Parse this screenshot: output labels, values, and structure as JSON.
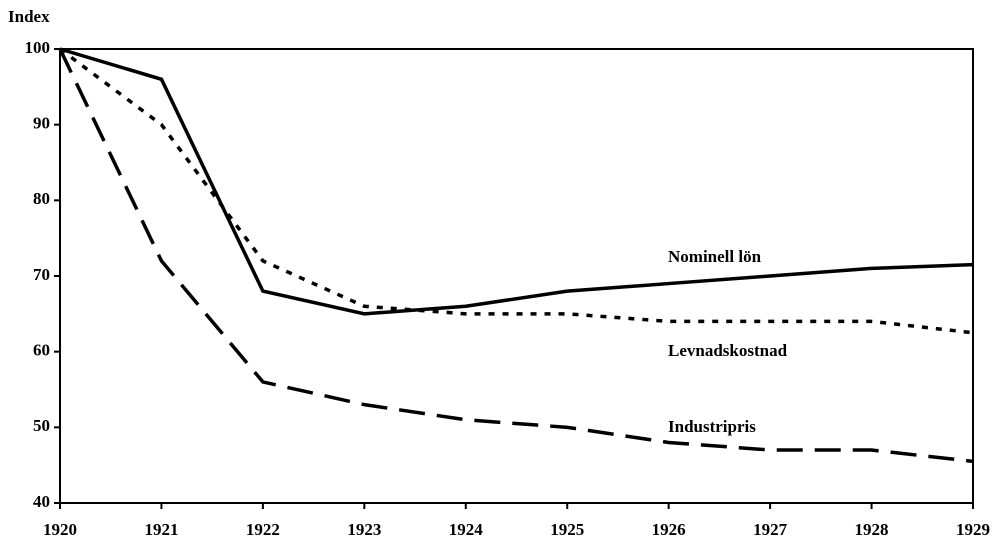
{
  "chart_data": {
    "type": "line",
    "y_label": "Index",
    "categories": [
      "1920",
      "1921",
      "1922",
      "1923",
      "1924",
      "1925",
      "1926",
      "1927",
      "1928",
      "1929"
    ],
    "series": [
      {
        "name": "Nominell lön",
        "color": "#000000",
        "dash": "solid",
        "values": [
          100,
          96,
          68,
          65,
          66,
          68,
          69,
          70,
          71,
          71.5
        ]
      },
      {
        "name": "Levnadskostnad",
        "color": "#000000",
        "dash": "dotted",
        "values": [
          100,
          90,
          72,
          66,
          65,
          65,
          64,
          64,
          64,
          62.5
        ]
      },
      {
        "name": "Industripris",
        "color": "#000000",
        "dash": "dashed",
        "values": [
          100,
          72,
          56,
          53,
          51,
          50,
          48,
          47,
          47,
          45.5
        ]
      }
    ],
    "ylim": [
      40,
      100
    ],
    "yticks": [
      40,
      50,
      60,
      70,
      80,
      90,
      100
    ]
  }
}
